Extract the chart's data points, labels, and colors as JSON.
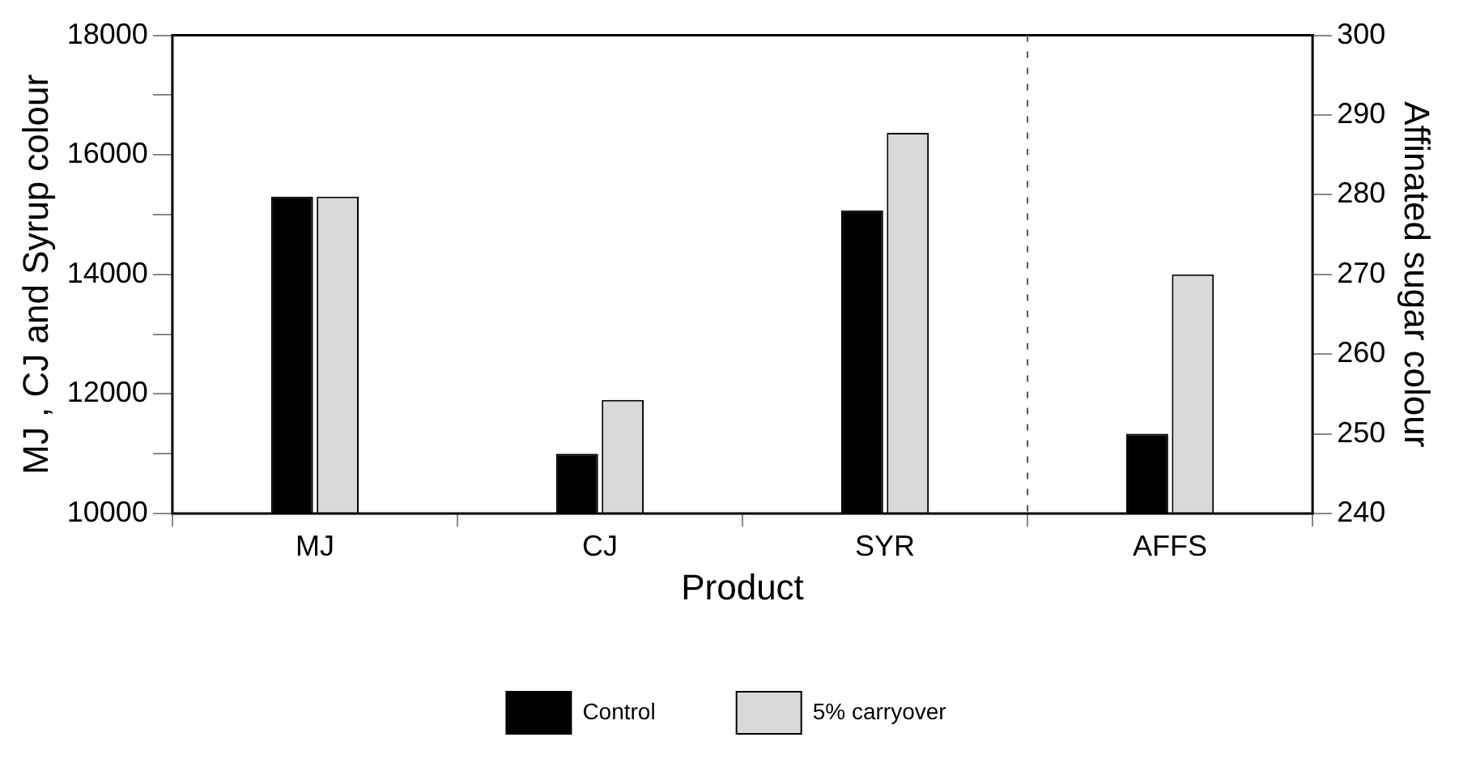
{
  "chart_data": {
    "type": "bar",
    "categories": [
      "MJ",
      "CJ",
      "SYR",
      "AFFS"
    ],
    "xlabel": "Product",
    "ylabel": "MJ , CJ and Syrup colour",
    "y2label": "Affinated sugar colour",
    "series": [
      {
        "name": "Control",
        "color": "#000000",
        "values": [
          15300,
          11000,
          15070,
          null
        ]
      },
      {
        "name": "5% carryover",
        "color": "#d9d9d9",
        "values": [
          15300,
          11900,
          16370,
          null
        ]
      },
      {
        "color": "#000000",
        "axis": "y2",
        "values": [
          null,
          null,
          null,
          250
        ]
      },
      {
        "color": "#d9d9d9",
        "axis": "y2",
        "values": [
          null,
          null,
          null,
          270
        ]
      }
    ],
    "ylim": [
      10000,
      18000
    ],
    "yticks": [
      10000,
      {
        "value": 11000,
        "label": null
      },
      12000,
      {
        "value": 13000,
        "label": null
      },
      14000,
      {
        "value": 15000,
        "label": null
      },
      16000,
      {
        "value": 17000,
        "label": null
      },
      18000
    ],
    "y2lim": [
      240,
      300
    ],
    "y2ticks": [
      240,
      250,
      260,
      270,
      280,
      290,
      300
    ],
    "grid": false,
    "legend": "bottom"
  }
}
